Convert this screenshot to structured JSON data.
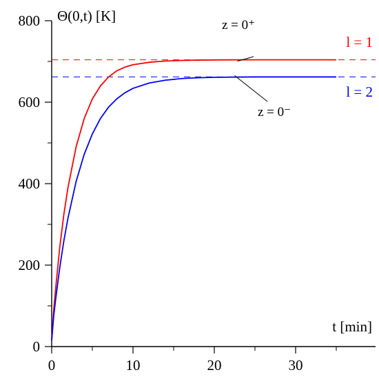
{
  "chart_data": {
    "type": "line",
    "ylabel": "Θ(0,t) [K]",
    "xlabel": "t [min]",
    "xlim": [
      0,
      35
    ],
    "ylim": [
      0,
      800
    ],
    "x_ticks": [
      0,
      10,
      20,
      30
    ],
    "y_ticks": [
      0,
      200,
      400,
      600,
      800
    ],
    "grid": false,
    "colors": {
      "l1": "#ff0000",
      "l2": "#0000ff",
      "axis": "#000000"
    },
    "series": [
      {
        "name": "l = 1",
        "color": "#ff0000",
        "asymptote": 704,
        "x": [
          0,
          0.25,
          0.5,
          1,
          1.5,
          2,
          3,
          4,
          5,
          6,
          7,
          8,
          9,
          10,
          12,
          14,
          16,
          18,
          20,
          22,
          25,
          30,
          35
        ],
        "y": [
          15,
          90,
          145,
          245,
          325,
          390,
          490,
          560,
          608,
          640,
          662,
          677,
          686,
          692,
          698,
          701,
          702.5,
          703.3,
          703.7,
          703.9,
          704,
          704,
          704
        ]
      },
      {
        "name": "l = 2",
        "color": "#0000ff",
        "asymptote": 662,
        "x": [
          0,
          0.25,
          0.5,
          1,
          1.5,
          2,
          3,
          4,
          5,
          6,
          7,
          8,
          9,
          10,
          12,
          14,
          16,
          18,
          20,
          22,
          25,
          30,
          35
        ],
        "y": [
          15,
          75,
          118,
          195,
          260,
          315,
          405,
          472,
          522,
          560,
          588,
          608,
          623,
          634,
          647,
          654,
          658,
          660,
          661,
          661.5,
          662,
          662,
          662
        ]
      }
    ],
    "annotations": [
      {
        "text": "z = 0⁺",
        "points_to": "l = 1",
        "at_x": 23,
        "at_y": 704
      },
      {
        "text": "z = 0⁻",
        "points_to": "l = 2",
        "at_x": 23,
        "at_y": 662
      }
    ],
    "series_labels": [
      {
        "text": "l = 1",
        "series": "l = 1"
      },
      {
        "text": "l = 2",
        "series": "l = 2"
      }
    ]
  }
}
